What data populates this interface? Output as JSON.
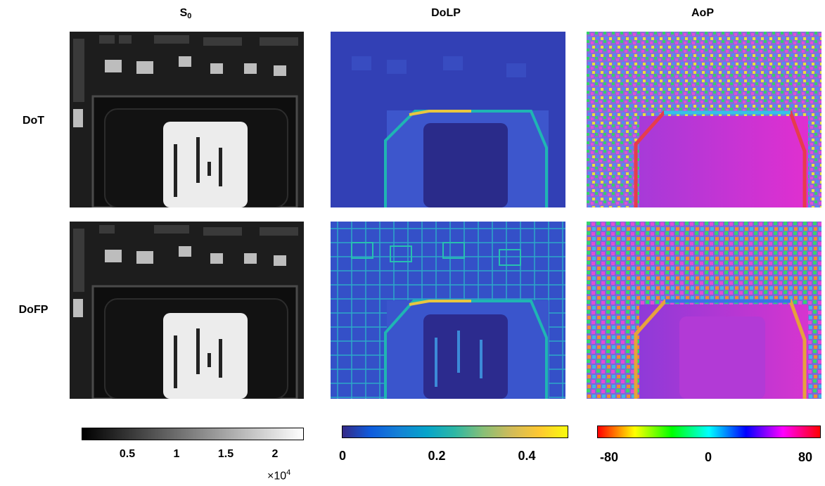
{
  "columns": {
    "s0": {
      "base": "S",
      "sub": "0"
    },
    "dolp": "DoLP",
    "aop": "AoP"
  },
  "rows": {
    "dot": "DoT",
    "dofp": "DoFP"
  },
  "colorbars": {
    "s0": {
      "colormap": "gray",
      "ticks": [
        "0.5",
        "1",
        "1.5",
        "2"
      ],
      "multiplier": {
        "prefix": "×10",
        "exponent": "4"
      }
    },
    "dolp": {
      "colormap": "parula",
      "ticks": [
        "0",
        "0.2",
        "0.4"
      ]
    },
    "aop": {
      "colormap": "hsv",
      "ticks": [
        "-80",
        "0",
        "80"
      ]
    }
  },
  "colors": {
    "gray_start": "#000000",
    "gray_end": "#ffffff",
    "parula": [
      "#352a87",
      "#0f5cdd",
      "#1481d6",
      "#06a4ca",
      "#2eb7a4",
      "#87bf77",
      "#d1bb59",
      "#fec832",
      "#f9fb0e"
    ],
    "hsv": [
      "#ff0000",
      "#ffff00",
      "#00ff00",
      "#00ffff",
      "#0000ff",
      "#ff00ff",
      "#ff0000"
    ]
  }
}
